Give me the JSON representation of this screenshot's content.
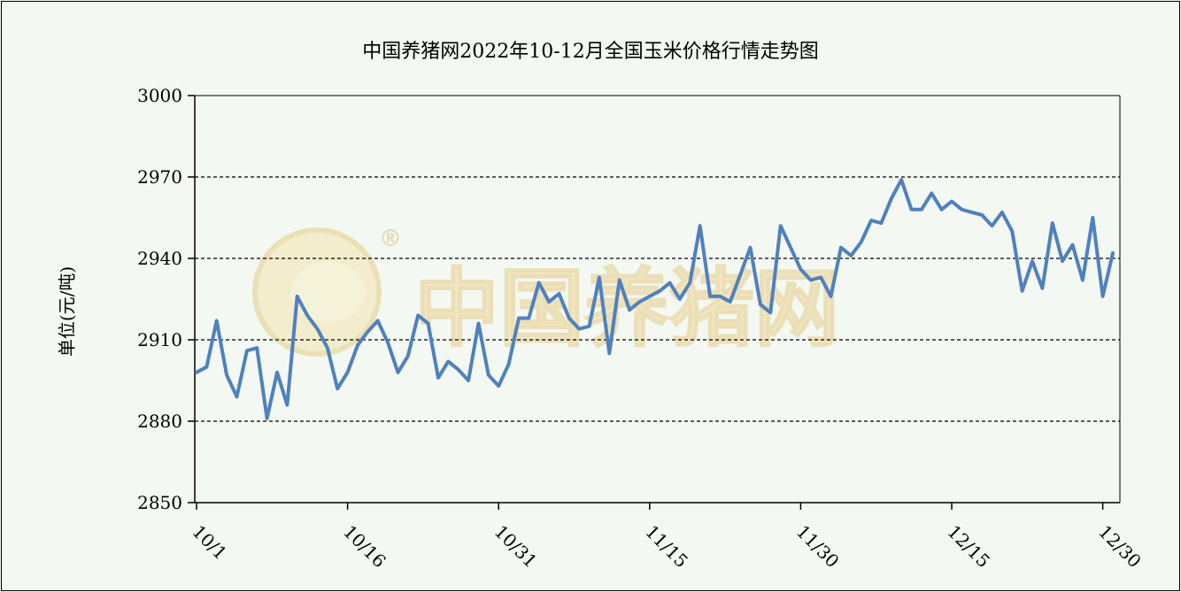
{
  "chart_data": {
    "type": "line",
    "title": "中国养猪网2022年10-12月全国玉米价格行情走势图",
    "ylabel": "单位(元/吨)",
    "xlabel": "",
    "ylim": [
      2850,
      3000
    ],
    "yticks": [
      "3000",
      "2970",
      "2940",
      "2910",
      "2880",
      "2850"
    ],
    "ytick_values": [
      3000,
      2970,
      2940,
      2910,
      2880,
      2850
    ],
    "xticks": [
      "10/1",
      "10/16",
      "10/31",
      "11/15",
      "11/30",
      "12/15",
      "12/30"
    ],
    "xtick_positions": [
      1,
      16,
      31,
      46,
      61,
      76,
      91
    ],
    "grid": "horizontal dashed",
    "line_color": "#4f81bd",
    "series": [
      {
        "x": [
          1,
          2,
          3,
          4,
          5,
          6,
          7,
          8,
          9,
          10,
          11,
          12,
          13,
          14,
          15,
          16,
          17,
          18,
          19,
          20,
          21,
          22,
          23,
          24,
          25,
          26,
          27,
          28,
          29,
          30,
          31,
          32,
          33,
          34,
          35,
          36,
          37,
          38,
          39,
          40,
          41,
          42,
          43,
          44,
          45,
          46,
          47,
          48,
          49,
          50,
          51,
          52,
          53,
          54,
          55,
          56,
          57,
          58,
          59,
          60,
          61,
          62,
          63,
          64,
          65,
          66,
          67,
          68,
          69,
          70,
          71,
          72,
          73,
          74,
          75,
          76,
          77,
          78,
          79,
          80,
          81,
          82,
          83,
          84,
          85,
          86,
          87,
          88,
          89,
          90,
          91,
          92
        ],
        "values": [
          2898,
          2900,
          2917,
          2897,
          2889,
          2906,
          2907,
          2881,
          2898,
          2886,
          2926,
          2919,
          2914,
          2907,
          2892,
          2898,
          2908,
          2913,
          2917,
          2909,
          2898,
          2904,
          2919,
          2916,
          2896,
          2902,
          2899,
          2895,
          2916,
          2897,
          2893,
          2901,
          2918,
          2918,
          2931,
          2924,
          2927,
          2918,
          2914,
          2915,
          2933,
          2905,
          2932,
          2921,
          2924,
          2926,
          2928,
          2931,
          2925,
          2931,
          2952,
          2926,
          2926,
          2924,
          2934,
          2944,
          2923,
          2920,
          2952,
          2944,
          2936,
          2932,
          2933,
          2926,
          2944,
          2941,
          2946,
          2954,
          2953,
          2962,
          2969,
          2958,
          2958,
          2964,
          2958,
          2961,
          2958,
          2957,
          2956,
          2952,
          2957,
          2950,
          2928,
          2939,
          2929,
          2953,
          2939,
          2945,
          2932,
          2955,
          2926,
          2942
        ]
      }
    ]
  },
  "watermark": {
    "text": "中国养猪网",
    "registered_mark": "®",
    "icon": "pig-logo-icon"
  }
}
